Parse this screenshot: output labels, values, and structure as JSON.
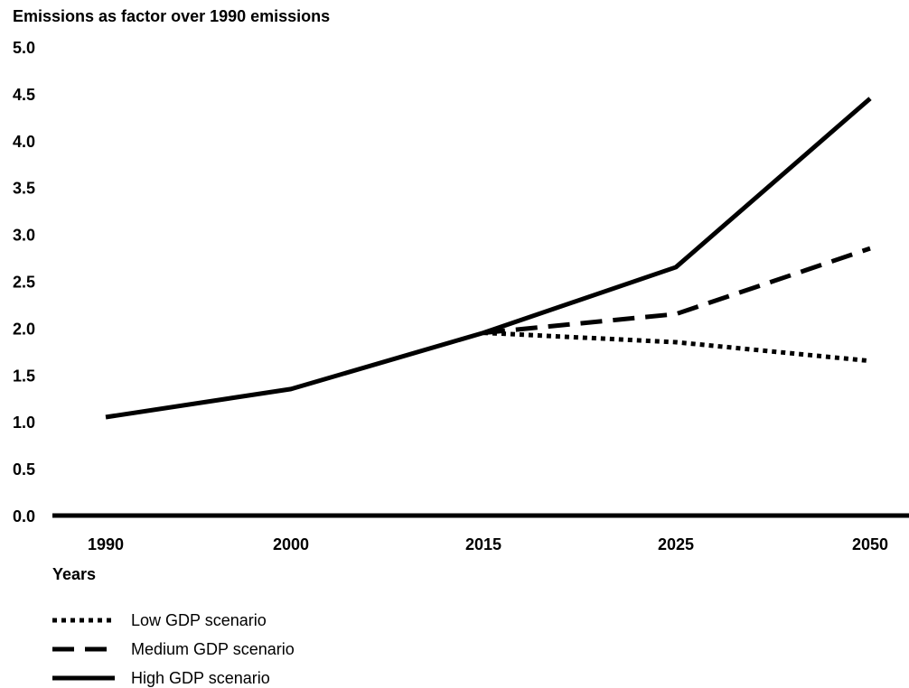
{
  "chart_data": {
    "type": "line",
    "title": "Emissions as factor over 1990 emissions",
    "xlabel": "Years",
    "ylabel": "",
    "categories": [
      "1990",
      "2000",
      "2015",
      "2025",
      "2050"
    ],
    "y_ticks": [
      "0.0",
      "0.5",
      "1.0",
      "1.5",
      "2.0",
      "2.5",
      "3.0",
      "3.5",
      "4.0",
      "4.5",
      "5.0"
    ],
    "ylim": [
      0,
      5
    ],
    "grid": false,
    "legend_position": "bottom-left",
    "series": [
      {
        "name": "Low GDP scenario",
        "style": "dotted",
        "values": [
          null,
          null,
          1.95,
          1.85,
          1.65
        ]
      },
      {
        "name": "Medium GDP scenario",
        "style": "dashed",
        "values": [
          null,
          null,
          1.95,
          2.15,
          2.85
        ]
      },
      {
        "name": "High GDP scenario",
        "style": "solid",
        "values": [
          1.05,
          1.35,
          1.95,
          2.65,
          4.45
        ]
      }
    ],
    "colors": {
      "line": "#000000",
      "background": "#ffffff"
    }
  }
}
